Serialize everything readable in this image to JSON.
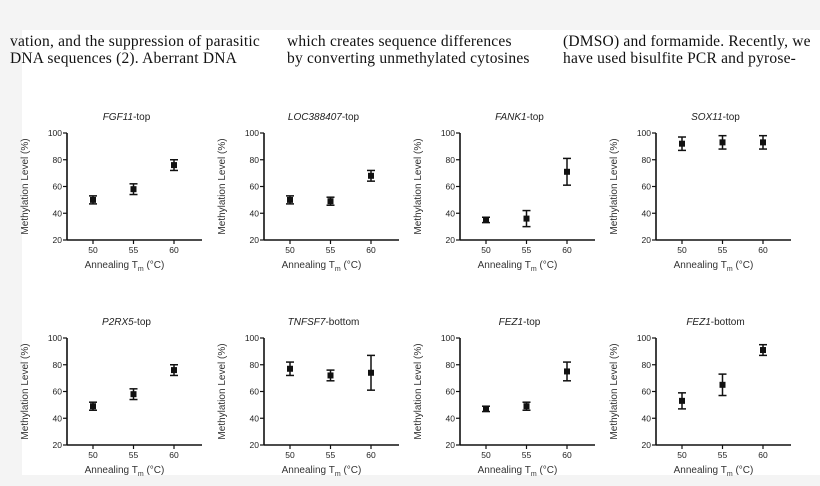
{
  "header_text": {
    "col1": [
      "vation, and the suppression of parasitic",
      "DNA sequences (2). Aberrant DNA"
    ],
    "col2": [
      "which creates sequence differences",
      "by converting unmethylated cytosines"
    ],
    "col3": [
      "(DMSO) and formamide. Recently, we",
      "have used bisulfite PCR and pyrose-"
    ]
  },
  "chart_data": [
    {
      "type": "scatter",
      "title_italic": "FGF11",
      "title_suffix": "-top",
      "x": [
        50,
        55,
        60
      ],
      "y": [
        50,
        58,
        76
      ],
      "error": [
        3,
        4,
        4
      ],
      "xlabel": "Annealing T",
      "xlabel_sub": "m",
      "xlabel_unit": " (°C)",
      "ylabel": "Methylation Level (%)",
      "xticks": [
        "50",
        "55",
        "60"
      ],
      "yticks": [
        "20",
        "40",
        "60",
        "80",
        "100"
      ],
      "ylim": [
        20,
        100
      ]
    },
    {
      "type": "scatter",
      "title_italic": "LOC388407",
      "title_suffix": "-top",
      "x": [
        50,
        55,
        60
      ],
      "y": [
        50,
        49,
        68
      ],
      "error": [
        3,
        3,
        4
      ],
      "xlabel": "Annealing T",
      "xlabel_sub": "m",
      "xlabel_unit": " (°C)",
      "ylabel": "Methylation Level (%)",
      "xticks": [
        "50",
        "55",
        "60"
      ],
      "yticks": [
        "20",
        "40",
        "60",
        "80",
        "100"
      ],
      "ylim": [
        20,
        100
      ]
    },
    {
      "type": "scatter",
      "title_italic": "FANK1",
      "title_suffix": "-top",
      "x": [
        50,
        55,
        60
      ],
      "y": [
        35,
        36,
        71
      ],
      "error": [
        2,
        6,
        10
      ],
      "xlabel": "Annealing T",
      "xlabel_sub": "m",
      "xlabel_unit": " (°C)",
      "ylabel": "Methylation Level (%)",
      "xticks": [
        "50",
        "55",
        "60"
      ],
      "yticks": [
        "20",
        "40",
        "60",
        "80",
        "100"
      ],
      "ylim": [
        20,
        100
      ]
    },
    {
      "type": "scatter",
      "title_italic": "SOX11",
      "title_suffix": "-top",
      "x": [
        50,
        55,
        60
      ],
      "y": [
        92,
        93,
        93
      ],
      "error": [
        5,
        5,
        5
      ],
      "xlabel": "Annealing T",
      "xlabel_sub": "m",
      "xlabel_unit": " (°C)",
      "ylabel": "Methylation Level (%)",
      "xticks": [
        "50",
        "55",
        "60"
      ],
      "yticks": [
        "20",
        "40",
        "60",
        "80",
        "100"
      ],
      "ylim": [
        20,
        100
      ]
    },
    {
      "type": "scatter",
      "title_italic": "P2RX5",
      "title_suffix": "-top",
      "x": [
        50,
        55,
        60
      ],
      "y": [
        49,
        58,
        76
      ],
      "error": [
        3,
        4,
        4
      ],
      "xlabel": "Annealing T",
      "xlabel_sub": "m",
      "xlabel_unit": " (°C)",
      "ylabel": "Methylation Level (%)",
      "xticks": [
        "50",
        "55",
        "60"
      ],
      "yticks": [
        "20",
        "40",
        "60",
        "80",
        "100"
      ],
      "ylim": [
        20,
        100
      ]
    },
    {
      "type": "scatter",
      "title_italic": "TNFSF7",
      "title_suffix": "-bottom",
      "x": [
        50,
        55,
        60
      ],
      "y": [
        77,
        72,
        74
      ],
      "error": [
        5,
        4,
        13
      ],
      "xlabel": "Annealing T",
      "xlabel_sub": "m",
      "xlabel_unit": " (°C)",
      "ylabel": "Methylation Level (%)",
      "xticks": [
        "50",
        "55",
        "60"
      ],
      "yticks": [
        "20",
        "40",
        "60",
        "80",
        "100"
      ],
      "ylim": [
        20,
        100
      ]
    },
    {
      "type": "scatter",
      "title_italic": "FEZ1",
      "title_suffix": "-top",
      "x": [
        50,
        55,
        60
      ],
      "y": [
        47,
        49,
        75
      ],
      "error": [
        2,
        3,
        7
      ],
      "xlabel": "Annealing T",
      "xlabel_sub": "m",
      "xlabel_unit": " (°C)",
      "ylabel": "Methylation Level (%)",
      "xticks": [
        "50",
        "55",
        "60"
      ],
      "yticks": [
        "20",
        "40",
        "60",
        "80",
        "100"
      ],
      "ylim": [
        20,
        100
      ]
    },
    {
      "type": "scatter",
      "title_italic": "FEZ1",
      "title_suffix": "-bottom",
      "x": [
        50,
        55,
        60
      ],
      "y": [
        53,
        65,
        91
      ],
      "error": [
        6,
        8,
        4
      ],
      "xlabel": "Annealing T",
      "xlabel_sub": "m",
      "xlabel_unit": " (°C)",
      "ylabel": "Methylation Level (%)",
      "xticks": [
        "50",
        "55",
        "60"
      ],
      "yticks": [
        "20",
        "40",
        "60",
        "80",
        "100"
      ],
      "ylim": [
        20,
        100
      ]
    }
  ]
}
